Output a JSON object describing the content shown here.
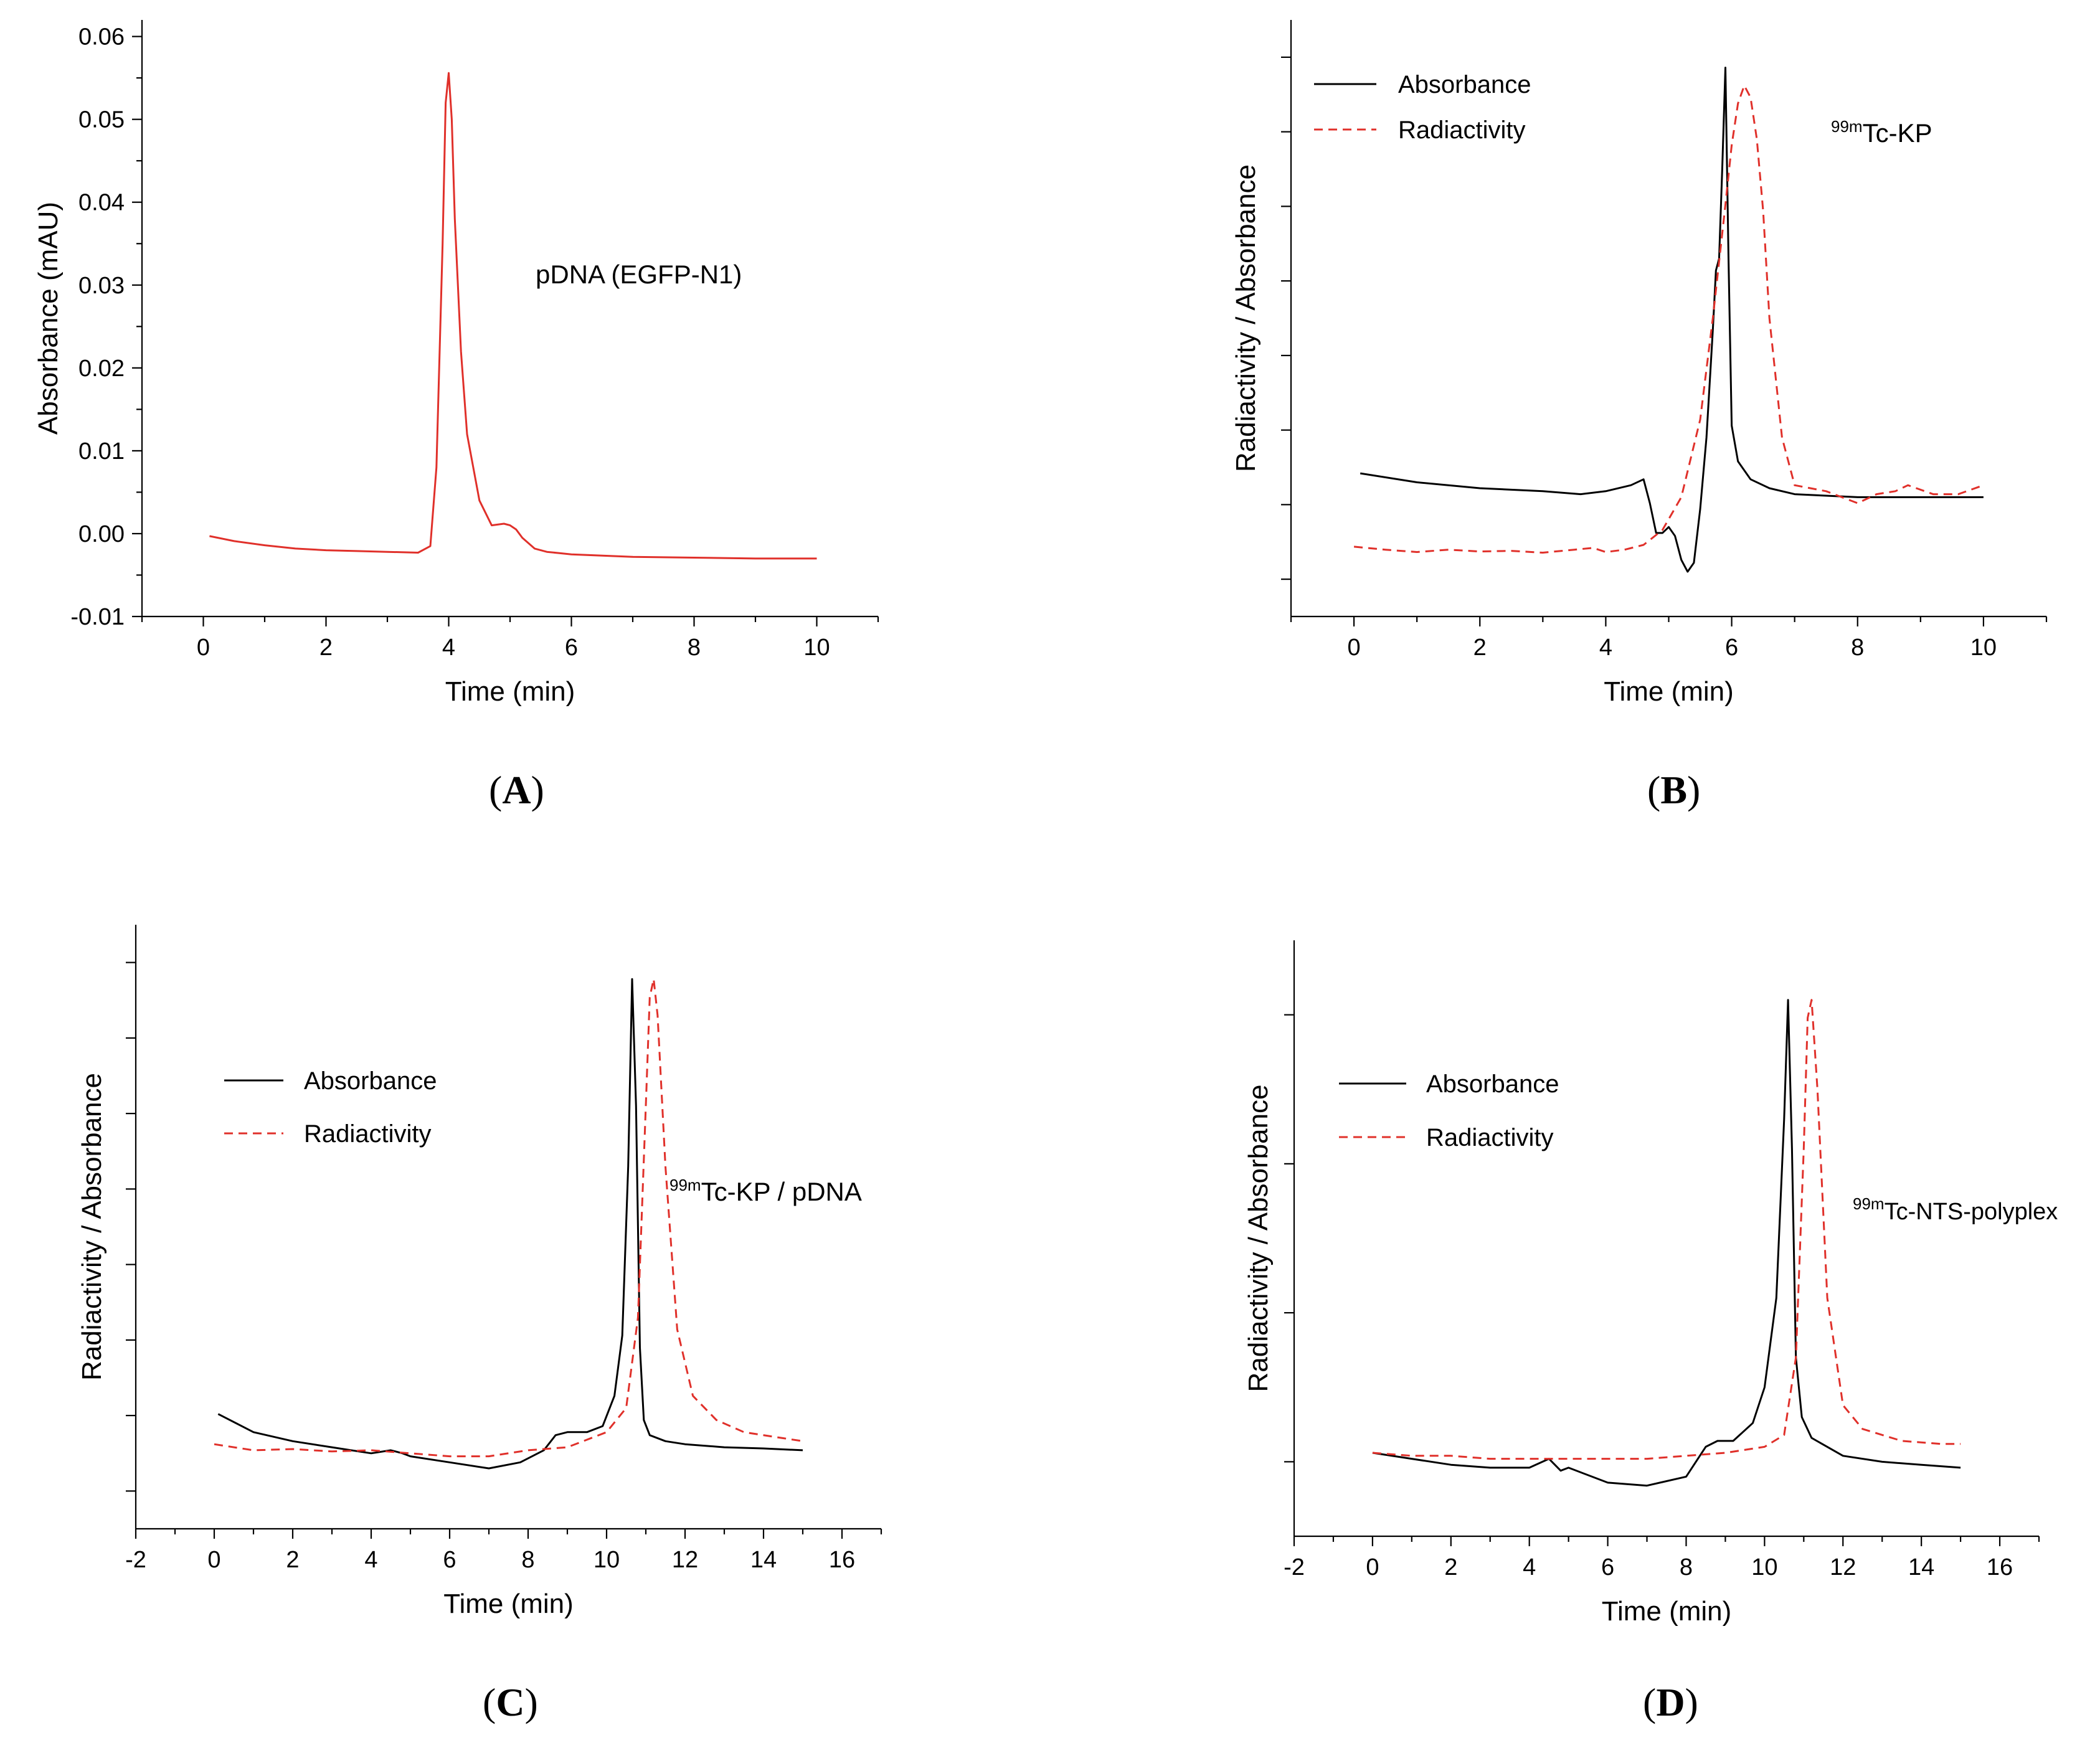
{
  "panels_text": {
    "A": "A",
    "B": "B",
    "C": "C",
    "D": "D"
  },
  "chart_data": [
    {
      "id": "A",
      "type": "line",
      "title": "",
      "xlabel": "Time (min)",
      "ylabel": "Absorbance (mAU)",
      "annotation": "pDNA (EGFP-N1)",
      "xlim": [
        -1,
        11
      ],
      "ylim": [
        -0.01,
        0.062
      ],
      "xticks": [
        0,
        2,
        4,
        6,
        8,
        10
      ],
      "yticks": [
        -0.01,
        0.0,
        0.01,
        0.02,
        0.03,
        0.04,
        0.05,
        0.06
      ],
      "ytick_labels": [
        "-0.01",
        "0.00",
        "0.01",
        "0.02",
        "0.03",
        "0.04",
        "0.05",
        "0.06"
      ],
      "series": [
        {
          "name": "Absorbance",
          "color": "#e0302a",
          "dash": "solid",
          "x": [
            0.1,
            0.5,
            1.0,
            1.5,
            2.0,
            2.5,
            3.0,
            3.5,
            3.7,
            3.8,
            3.9,
            3.95,
            4.0,
            4.05,
            4.1,
            4.2,
            4.3,
            4.5,
            4.7,
            4.9,
            5.0,
            5.1,
            5.2,
            5.4,
            5.6,
            6.0,
            7.0,
            8.0,
            9.0,
            10.0
          ],
          "y": [
            -0.0003,
            -0.0009,
            -0.0014,
            -0.0018,
            -0.002,
            -0.0021,
            -0.0022,
            -0.0023,
            -0.0015,
            0.008,
            0.035,
            0.052,
            0.0556,
            0.05,
            0.038,
            0.022,
            0.012,
            0.004,
            0.001,
            0.0012,
            0.001,
            0.0005,
            -0.0005,
            -0.0018,
            -0.0022,
            -0.0025,
            -0.0028,
            -0.0029,
            -0.003,
            -0.003
          ]
        }
      ]
    },
    {
      "id": "B",
      "type": "line",
      "xlabel": "Time (min)",
      "ylabel": "Radiactivity / Absorbance",
      "annotation_sup": "99m",
      "annotation": "Tc-KP",
      "legend": [
        "Absorbance",
        "Radiactivity"
      ],
      "xlim": [
        -1,
        11
      ],
      "ylim": [
        0,
        10
      ],
      "xticks": [
        0,
        2,
        4,
        6,
        8,
        10
      ],
      "yticks_count": 8,
      "series": [
        {
          "name": "Absorbance",
          "color": "#000000",
          "dash": "solid",
          "x": [
            0.1,
            1.0,
            2.0,
            3.0,
            3.6,
            4.0,
            4.4,
            4.6,
            4.7,
            4.8,
            4.9,
            5.0,
            5.1,
            5.2,
            5.3,
            5.4,
            5.5,
            5.6,
            5.7,
            5.75,
            5.8,
            5.85,
            5.9,
            5.95,
            6.0,
            6.1,
            6.3,
            6.6,
            7.0,
            8.0,
            9.0,
            10.0
          ],
          "y": [
            2.4,
            2.25,
            2.15,
            2.1,
            2.05,
            2.1,
            2.2,
            2.3,
            1.9,
            1.4,
            1.4,
            1.5,
            1.35,
            0.95,
            0.75,
            0.9,
            1.8,
            3.0,
            4.8,
            5.8,
            6.0,
            7.5,
            9.2,
            6.0,
            3.2,
            2.6,
            2.3,
            2.15,
            2.05,
            2.0,
            2.0,
            2.0
          ]
        },
        {
          "name": "Radiactivity",
          "color": "#e0302a",
          "dash": "dashed",
          "x": [
            0.0,
            0.5,
            1.0,
            1.5,
            2.0,
            2.5,
            3.0,
            3.5,
            3.8,
            4.0,
            4.3,
            4.6,
            4.9,
            5.2,
            5.5,
            5.7,
            5.9,
            6.0,
            6.1,
            6.2,
            6.3,
            6.4,
            6.5,
            6.6,
            6.8,
            7.0,
            7.5,
            8.0,
            8.3,
            8.6,
            8.8,
            9.2,
            9.6,
            10.0
          ],
          "y": [
            1.17,
            1.12,
            1.08,
            1.12,
            1.09,
            1.1,
            1.07,
            1.12,
            1.15,
            1.08,
            1.12,
            1.2,
            1.45,
            2.0,
            3.3,
            5.0,
            6.9,
            7.9,
            8.6,
            8.9,
            8.7,
            8.0,
            6.8,
            5.0,
            3.0,
            2.2,
            2.1,
            1.9,
            2.05,
            2.1,
            2.2,
            2.05,
            2.05,
            2.2
          ]
        }
      ]
    },
    {
      "id": "C",
      "type": "line",
      "xlabel": "Time (min)",
      "ylabel": "Radiactivity / Absorbance",
      "annotation_sup": "99m",
      "annotation": "Tc-KP / pDNA",
      "legend": [
        "Absorbance",
        "Radiactivity"
      ],
      "xlim": [
        -2,
        17
      ],
      "ylim": [
        0,
        10
      ],
      "xticks": [
        -2,
        0,
        2,
        4,
        6,
        8,
        10,
        12,
        14,
        16
      ],
      "yticks_count": 8,
      "series": [
        {
          "name": "Absorbance",
          "color": "#000000",
          "dash": "solid",
          "x": [
            0.1,
            1.0,
            2.0,
            3.0,
            4.0,
            4.5,
            4.8,
            5.0,
            6.0,
            7.0,
            7.8,
            8.4,
            8.7,
            9.0,
            9.5,
            9.9,
            10.2,
            10.4,
            10.55,
            10.65,
            10.75,
            10.85,
            10.95,
            11.1,
            11.5,
            12.0,
            13.0,
            14.0,
            15.0
          ],
          "y": [
            1.9,
            1.6,
            1.45,
            1.35,
            1.25,
            1.3,
            1.25,
            1.2,
            1.1,
            1.0,
            1.1,
            1.3,
            1.55,
            1.6,
            1.6,
            1.7,
            2.2,
            3.2,
            6.0,
            9.1,
            7.0,
            3.0,
            1.8,
            1.55,
            1.45,
            1.4,
            1.35,
            1.33,
            1.3
          ]
        },
        {
          "name": "Radiactivity",
          "color": "#e0302a",
          "dash": "dashed",
          "x": [
            0.0,
            1.0,
            2.0,
            3.0,
            4.0,
            5.0,
            6.0,
            7.0,
            8.0,
            9.0,
            10.0,
            10.5,
            10.8,
            11.0,
            11.1,
            11.2,
            11.3,
            11.5,
            11.8,
            12.2,
            12.8,
            13.5,
            14.5,
            15.0
          ],
          "y": [
            1.4,
            1.3,
            1.32,
            1.28,
            1.3,
            1.25,
            1.2,
            1.2,
            1.3,
            1.35,
            1.6,
            2.0,
            3.5,
            7.0,
            8.8,
            9.1,
            8.5,
            6.0,
            3.3,
            2.2,
            1.8,
            1.6,
            1.5,
            1.45
          ]
        }
      ]
    },
    {
      "id": "D",
      "type": "line",
      "xlabel": "Time (min)",
      "ylabel": "Radiactivity / Absorbance",
      "annotation_sup": "99m",
      "annotation": "Tc-NTS-polyplex",
      "legend": [
        "Absorbance",
        "Radiactivity"
      ],
      "xlim": [
        -2,
        17
      ],
      "ylim": [
        0,
        10
      ],
      "xticks": [
        -2,
        0,
        2,
        4,
        6,
        8,
        10,
        12,
        14,
        16
      ],
      "yticks_count": 4,
      "series": [
        {
          "name": "Absorbance",
          "color": "#000000",
          "dash": "solid",
          "x": [
            0.0,
            1.0,
            2.0,
            3.0,
            4.0,
            4.5,
            4.8,
            5.0,
            6.0,
            7.0,
            8.0,
            8.5,
            8.8,
            9.2,
            9.7,
            10.0,
            10.3,
            10.5,
            10.6,
            10.7,
            10.8,
            10.95,
            11.2,
            12.0,
            13.0,
            14.0,
            15.0
          ],
          "y": [
            1.4,
            1.3,
            1.2,
            1.15,
            1.15,
            1.3,
            1.1,
            1.15,
            0.9,
            0.85,
            1.0,
            1.5,
            1.6,
            1.6,
            1.9,
            2.5,
            4.0,
            7.0,
            9.0,
            6.5,
            3.0,
            2.0,
            1.65,
            1.35,
            1.25,
            1.2,
            1.15
          ]
        },
        {
          "name": "Radiactivity",
          "color": "#e0302a",
          "dash": "dashed",
          "x": [
            0.0,
            1.0,
            2.0,
            3.0,
            4.0,
            5.0,
            6.0,
            7.0,
            8.0,
            9.0,
            10.0,
            10.5,
            10.8,
            11.0,
            11.1,
            11.2,
            11.35,
            11.6,
            12.0,
            12.5,
            13.5,
            14.5,
            15.0
          ],
          "y": [
            1.4,
            1.35,
            1.35,
            1.3,
            1.3,
            1.3,
            1.3,
            1.3,
            1.35,
            1.4,
            1.5,
            1.7,
            3.0,
            6.5,
            8.7,
            9.0,
            7.5,
            4.0,
            2.2,
            1.8,
            1.6,
            1.55,
            1.55
          ]
        }
      ]
    }
  ]
}
